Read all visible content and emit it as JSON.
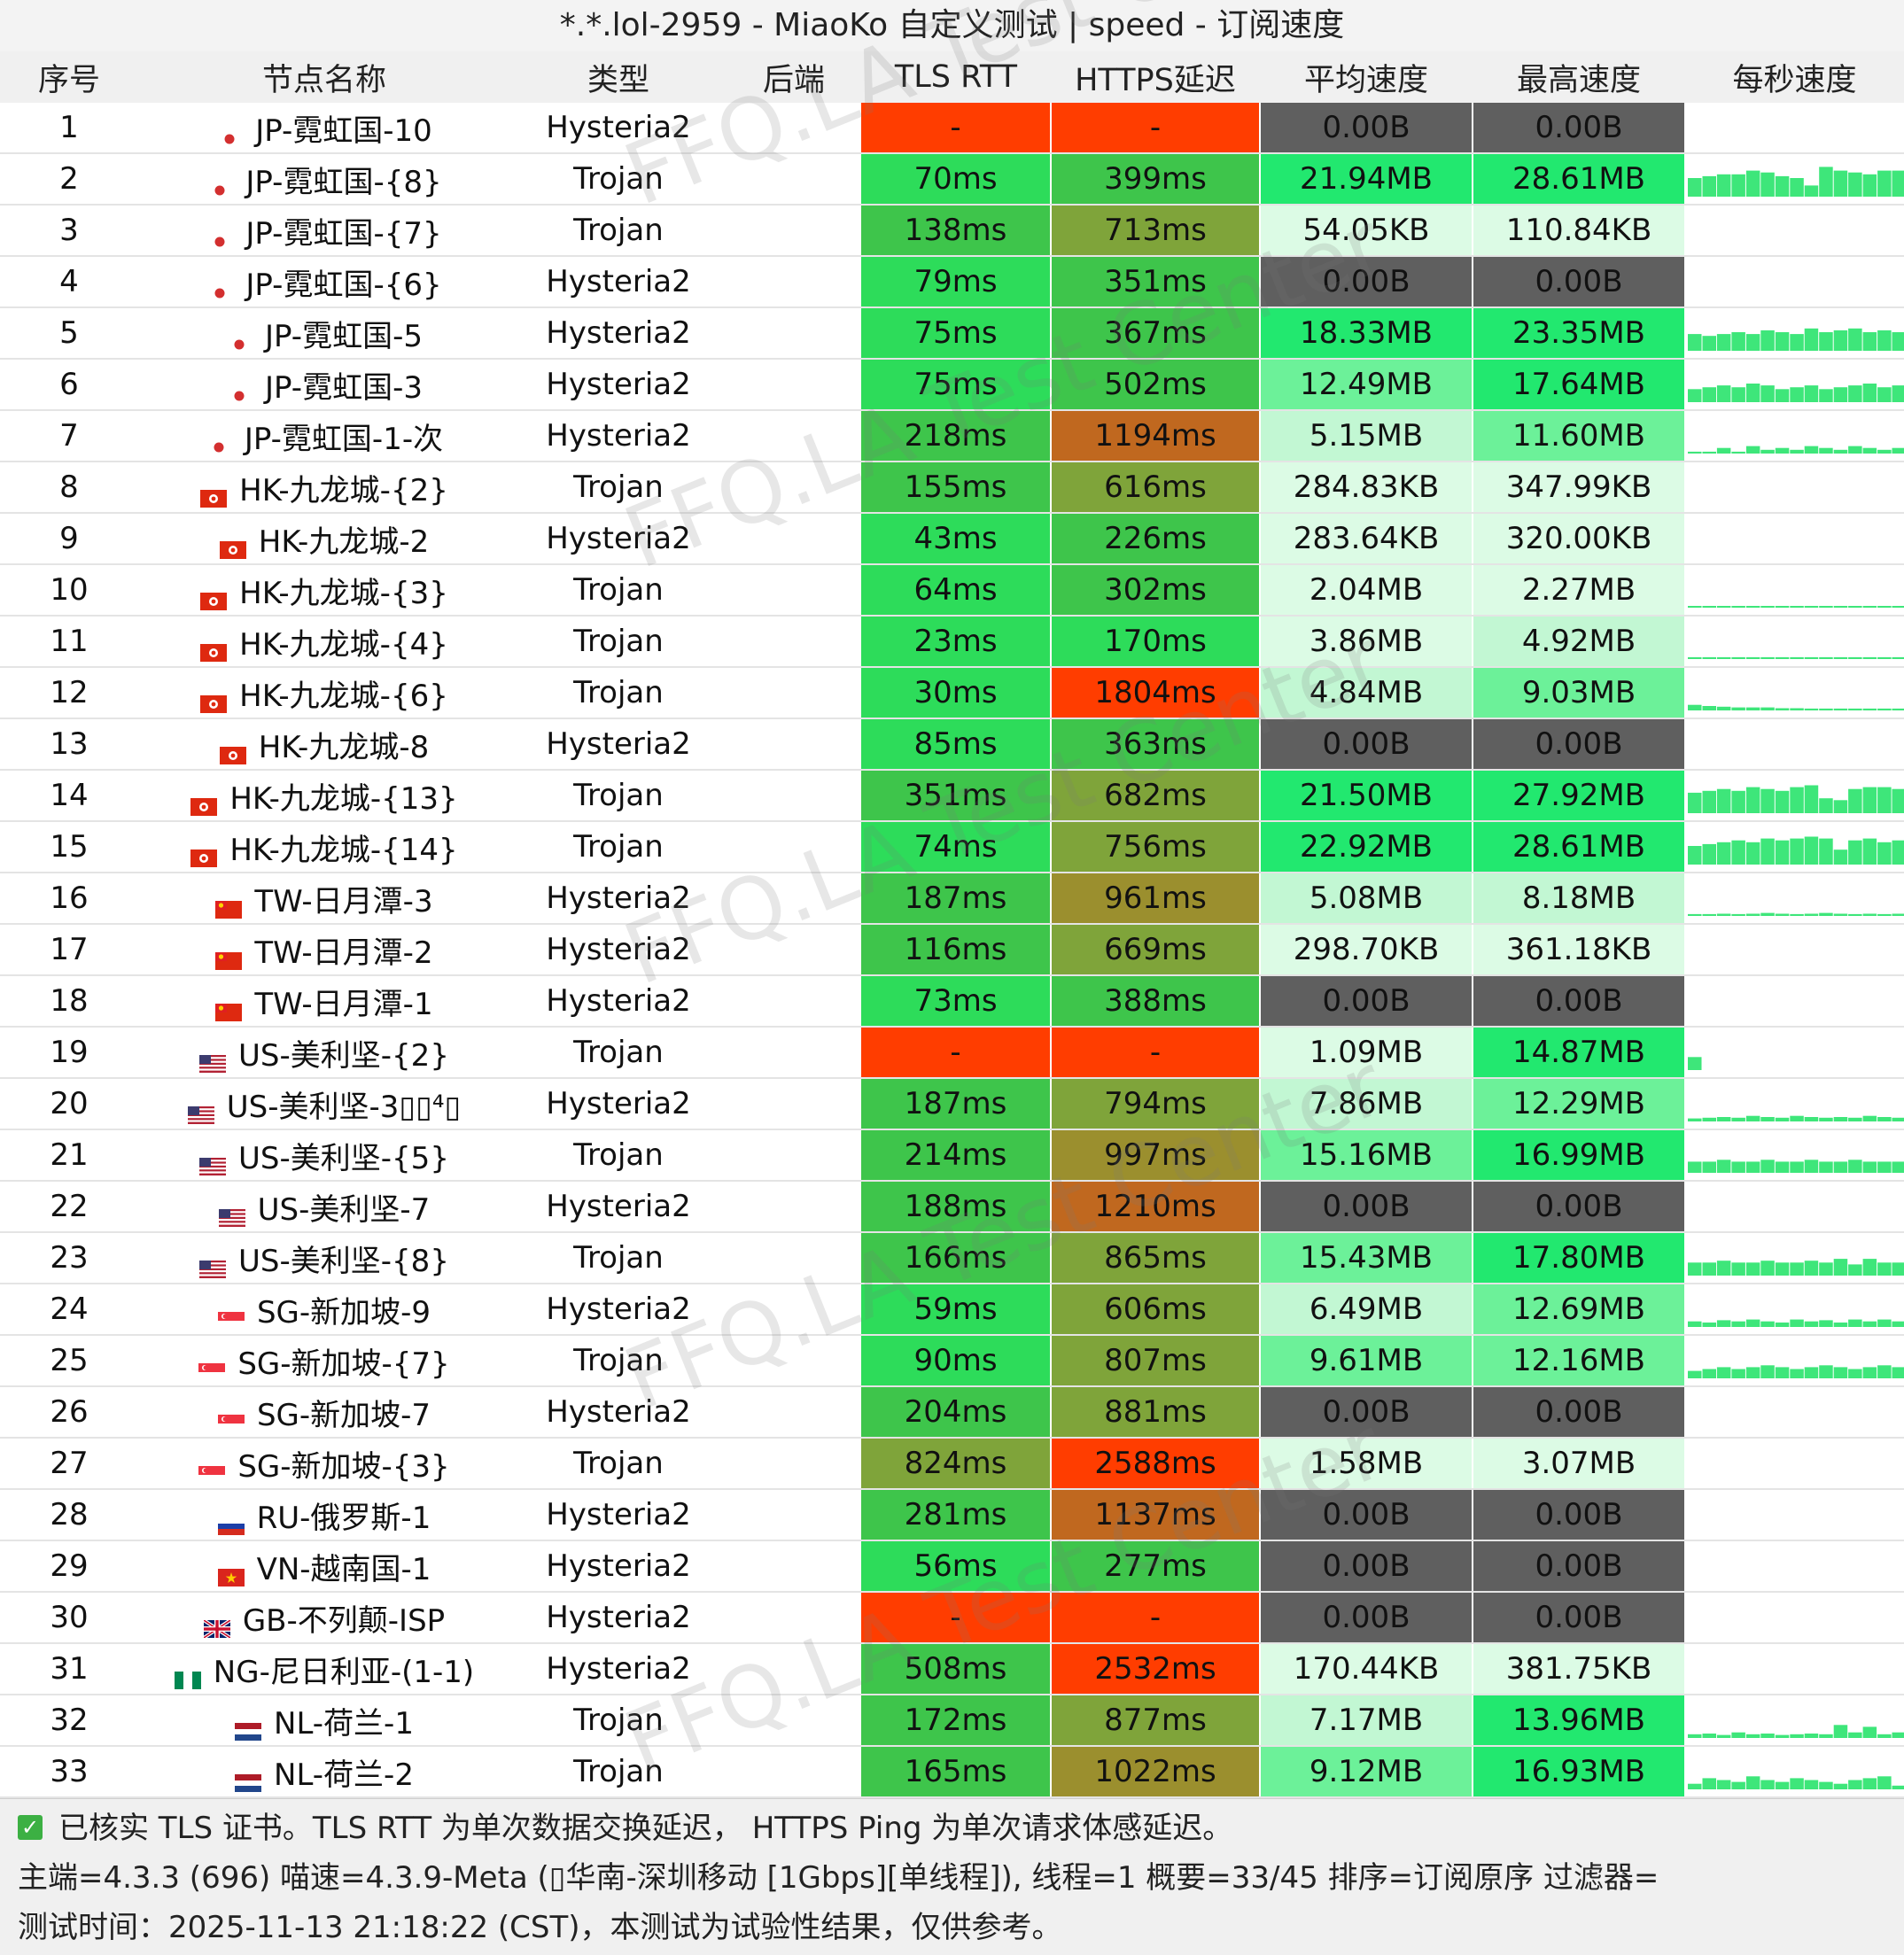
{
  "window": {
    "title": "*.*.lol-2959 - MiaoKo 自定义测试 | speed - 订阅速度"
  },
  "columns": [
    "序号",
    "节点名称",
    "类型",
    "后端",
    "TLS RTT",
    "HTTPS延迟",
    "平均速度",
    "最高速度",
    "每秒速度"
  ],
  "colors": {
    "fail_red": "#ff3d00",
    "no_speed_gray": "#5f5f5f",
    "good_green": "#2ddc5a",
    "ok_green": "#3ec54b",
    "olive": "#7fa43a",
    "olive_dark": "#9b8f2e",
    "orange": "#c0681f",
    "speed_high": "#22e86f",
    "speed_mid": "#6cf199",
    "speed_low": "#c2f7d3",
    "speed_min": "#dcfbe5",
    "graph_green": "#3ee67a"
  },
  "rows": [
    {
      "id": "1",
      "flag": "jp",
      "name": "JP-霓虹国-10",
      "type": "Hysteria2",
      "backend": "",
      "tls": "-",
      "https": "-",
      "avg": "0.00B",
      "max": "0.00B",
      "tls_c": "fail_red",
      "https_c": "fail_red",
      "avg_c": "no_speed_gray",
      "max_c": "no_speed_gray",
      "graph": []
    },
    {
      "id": "2",
      "flag": "jp",
      "name": "JP-霓虹国-{8}",
      "type": "Trojan",
      "backend": "",
      "tls": "70ms",
      "https": "399ms",
      "avg": "21.94MB",
      "max": "28.61MB",
      "tls_c": "good_green",
      "https_c": "ok_green",
      "avg_c": "speed_high",
      "max_c": "speed_high",
      "graph": [
        0.5,
        0.55,
        0.6,
        0.6,
        0.7,
        0.65,
        0.55,
        0.5,
        0.3,
        0.8,
        0.7,
        0.65,
        0.6,
        0.7,
        0.7
      ]
    },
    {
      "id": "3",
      "flag": "jp",
      "name": "JP-霓虹国-{7}",
      "type": "Trojan",
      "backend": "",
      "tls": "138ms",
      "https": "713ms",
      "avg": "54.05KB",
      "max": "110.84KB",
      "tls_c": "ok_green",
      "https_c": "olive",
      "avg_c": "speed_min",
      "max_c": "speed_min",
      "graph": []
    },
    {
      "id": "4",
      "flag": "jp",
      "name": "JP-霓虹国-{6}",
      "type": "Hysteria2",
      "backend": "",
      "tls": "79ms",
      "https": "351ms",
      "avg": "0.00B",
      "max": "0.00B",
      "tls_c": "good_green",
      "https_c": "ok_green",
      "avg_c": "no_speed_gray",
      "max_c": "no_speed_gray",
      "graph": []
    },
    {
      "id": "5",
      "flag": "jp",
      "name": "JP-霓虹国-5",
      "type": "Hysteria2",
      "backend": "",
      "tls": "75ms",
      "https": "367ms",
      "avg": "18.33MB",
      "max": "23.35MB",
      "tls_c": "good_green",
      "https_c": "ok_green",
      "avg_c": "speed_high",
      "max_c": "speed_high",
      "graph": [
        0.45,
        0.4,
        0.45,
        0.5,
        0.45,
        0.55,
        0.5,
        0.45,
        0.6,
        0.5,
        0.55,
        0.6,
        0.5,
        0.55,
        0.5
      ]
    },
    {
      "id": "6",
      "flag": "jp",
      "name": "JP-霓虹国-3",
      "type": "Hysteria2",
      "backend": "",
      "tls": "75ms",
      "https": "502ms",
      "avg": "12.49MB",
      "max": "17.64MB",
      "tls_c": "good_green",
      "https_c": "ok_green",
      "avg_c": "speed_mid",
      "max_c": "speed_high",
      "graph": [
        0.35,
        0.4,
        0.45,
        0.4,
        0.5,
        0.45,
        0.35,
        0.4,
        0.45,
        0.35,
        0.4,
        0.45,
        0.5,
        0.4,
        0.45
      ]
    },
    {
      "id": "7",
      "flag": "jp",
      "name": "JP-霓虹国-1-次",
      "type": "Hysteria2",
      "backend": "",
      "tls": "218ms",
      "https": "1194ms",
      "avg": "5.15MB",
      "max": "11.60MB",
      "tls_c": "ok_green",
      "https_c": "orange",
      "avg_c": "speed_low",
      "max_c": "speed_mid",
      "graph": [
        0.05,
        0.05,
        0.15,
        0.05,
        0.2,
        0.1,
        0.15,
        0.1,
        0.2,
        0.15,
        0.1,
        0.2,
        0.15,
        0.1,
        0.15
      ]
    },
    {
      "id": "8",
      "flag": "hk",
      "name": "HK-九龙城-{2}",
      "type": "Trojan",
      "backend": "",
      "tls": "155ms",
      "https": "616ms",
      "avg": "284.83KB",
      "max": "347.99KB",
      "tls_c": "ok_green",
      "https_c": "olive",
      "avg_c": "speed_min",
      "max_c": "speed_min",
      "graph": []
    },
    {
      "id": "9",
      "flag": "hk",
      "name": "HK-九龙城-2",
      "type": "Hysteria2",
      "backend": "",
      "tls": "43ms",
      "https": "226ms",
      "avg": "283.64KB",
      "max": "320.00KB",
      "tls_c": "good_green",
      "https_c": "ok_green",
      "avg_c": "speed_min",
      "max_c": "speed_min",
      "graph": []
    },
    {
      "id": "10",
      "flag": "hk",
      "name": "HK-九龙城-{3}",
      "type": "Trojan",
      "backend": "",
      "tls": "64ms",
      "https": "302ms",
      "avg": "2.04MB",
      "max": "2.27MB",
      "tls_c": "good_green",
      "https_c": "ok_green",
      "avg_c": "speed_min",
      "max_c": "speed_min",
      "graph": [
        0.03,
        0.03,
        0.03,
        0.03,
        0.03,
        0.03,
        0.03,
        0.03,
        0.03,
        0.03,
        0.03,
        0.03,
        0.03,
        0.03,
        0.03
      ]
    },
    {
      "id": "11",
      "flag": "hk",
      "name": "HK-九龙城-{4}",
      "type": "Trojan",
      "backend": "",
      "tls": "23ms",
      "https": "170ms",
      "avg": "3.86MB",
      "max": "4.92MB",
      "tls_c": "good_green",
      "https_c": "good_green",
      "avg_c": "speed_min",
      "max_c": "speed_low",
      "graph": [
        0.05,
        0.05,
        0.05,
        0.05,
        0.05,
        0.05,
        0.05,
        0.05,
        0.05,
        0.05,
        0.05,
        0.05,
        0.05,
        0.05,
        0.05
      ]
    },
    {
      "id": "12",
      "flag": "hk",
      "name": "HK-九龙城-{6}",
      "type": "Trojan",
      "backend": "",
      "tls": "30ms",
      "https": "1804ms",
      "avg": "4.84MB",
      "max": "9.03MB",
      "tls_c": "good_green",
      "https_c": "fail_red",
      "avg_c": "speed_low",
      "max_c": "speed_mid",
      "graph": [
        0.15,
        0.12,
        0.1,
        0.08,
        0.08,
        0.08,
        0.06,
        0.06,
        0.05,
        0.05,
        0.05,
        0.05,
        0.05,
        0.05,
        0.05
      ]
    },
    {
      "id": "13",
      "flag": "hk",
      "name": "HK-九龙城-8",
      "type": "Hysteria2",
      "backend": "",
      "tls": "85ms",
      "https": "363ms",
      "avg": "0.00B",
      "max": "0.00B",
      "tls_c": "good_green",
      "https_c": "ok_green",
      "avg_c": "no_speed_gray",
      "max_c": "no_speed_gray",
      "graph": []
    },
    {
      "id": "14",
      "flag": "hk",
      "name": "HK-九龙城-{13}",
      "type": "Trojan",
      "backend": "",
      "tls": "351ms",
      "https": "682ms",
      "avg": "21.50MB",
      "max": "27.92MB",
      "tls_c": "ok_green",
      "https_c": "olive",
      "avg_c": "speed_high",
      "max_c": "speed_high",
      "graph": [
        0.55,
        0.6,
        0.65,
        0.6,
        0.7,
        0.65,
        0.6,
        0.7,
        0.75,
        0.4,
        0.35,
        0.65,
        0.7,
        0.7,
        0.65
      ]
    },
    {
      "id": "15",
      "flag": "hk",
      "name": "HK-九龙城-{14}",
      "type": "Trojan",
      "backend": "",
      "tls": "74ms",
      "https": "756ms",
      "avg": "22.92MB",
      "max": "28.61MB",
      "tls_c": "good_green",
      "https_c": "olive",
      "avg_c": "speed_high",
      "max_c": "speed_high",
      "graph": [
        0.5,
        0.55,
        0.6,
        0.65,
        0.6,
        0.7,
        0.65,
        0.7,
        0.75,
        0.7,
        0.4,
        0.65,
        0.7,
        0.6,
        0.65
      ]
    },
    {
      "id": "16",
      "flag": "tw",
      "name": "TW-日月潭-3",
      "type": "Hysteria2",
      "backend": "",
      "tls": "187ms",
      "https": "961ms",
      "avg": "5.08MB",
      "max": "8.18MB",
      "tls_c": "ok_green",
      "https_c": "olive_dark",
      "avg_c": "speed_low",
      "max_c": "speed_low",
      "graph": [
        0.05,
        0.05,
        0.06,
        0.05,
        0.06,
        0.08,
        0.06,
        0.05,
        0.06,
        0.08,
        0.06,
        0.05,
        0.06,
        0.05,
        0.06
      ]
    },
    {
      "id": "17",
      "flag": "tw",
      "name": "TW-日月潭-2",
      "type": "Hysteria2",
      "backend": "",
      "tls": "116ms",
      "https": "669ms",
      "avg": "298.70KB",
      "max": "361.18KB",
      "tls_c": "ok_green",
      "https_c": "olive",
      "avg_c": "speed_min",
      "max_c": "speed_min",
      "graph": []
    },
    {
      "id": "18",
      "flag": "tw",
      "name": "TW-日月潭-1",
      "type": "Hysteria2",
      "backend": "",
      "tls": "73ms",
      "https": "388ms",
      "avg": "0.00B",
      "max": "0.00B",
      "tls_c": "good_green",
      "https_c": "ok_green",
      "avg_c": "no_speed_gray",
      "max_c": "no_speed_gray",
      "graph": []
    },
    {
      "id": "19",
      "flag": "us",
      "name": "US-美利坚-{2}",
      "type": "Trojan",
      "backend": "",
      "tls": "-",
      "https": "-",
      "avg": "1.09MB",
      "max": "14.87MB",
      "tls_c": "fail_red",
      "https_c": "fail_red",
      "avg_c": "speed_min",
      "max_c": "speed_high",
      "graph": [
        0.35,
        0,
        0,
        0,
        0,
        0,
        0,
        0,
        0,
        0,
        0,
        0,
        0,
        0,
        0
      ]
    },
    {
      "id": "20",
      "flag": "us",
      "name": "US-美利坚-3▯▯⁴▯",
      "type": "Hysteria2",
      "backend": "",
      "tls": "187ms",
      "https": "794ms",
      "avg": "7.86MB",
      "max": "12.29MB",
      "tls_c": "ok_green",
      "https_c": "olive",
      "avg_c": "speed_low",
      "max_c": "speed_mid",
      "graph": [
        0.08,
        0.1,
        0.12,
        0.1,
        0.15,
        0.12,
        0.1,
        0.15,
        0.12,
        0.1,
        0.12,
        0.1,
        0.15,
        0.12,
        0.1
      ]
    },
    {
      "id": "21",
      "flag": "us",
      "name": "US-美利坚-{5}",
      "type": "Trojan",
      "backend": "",
      "tls": "214ms",
      "https": "997ms",
      "avg": "15.16MB",
      "max": "16.99MB",
      "tls_c": "ok_green",
      "https_c": "olive_dark",
      "avg_c": "speed_mid",
      "max_c": "speed_high",
      "graph": [
        0.3,
        0.3,
        0.35,
        0.3,
        0.3,
        0.35,
        0.3,
        0.3,
        0.35,
        0.3,
        0.3,
        0.35,
        0.3,
        0.3,
        0.3
      ]
    },
    {
      "id": "22",
      "flag": "us",
      "name": "US-美利坚-7",
      "type": "Hysteria2",
      "backend": "",
      "tls": "188ms",
      "https": "1210ms",
      "avg": "0.00B",
      "max": "0.00B",
      "tls_c": "ok_green",
      "https_c": "orange",
      "avg_c": "no_speed_gray",
      "max_c": "no_speed_gray",
      "graph": []
    },
    {
      "id": "23",
      "flag": "us",
      "name": "US-美利坚-{8}",
      "type": "Trojan",
      "backend": "",
      "tls": "166ms",
      "https": "865ms",
      "avg": "15.43MB",
      "max": "17.80MB",
      "tls_c": "ok_green",
      "https_c": "olive",
      "avg_c": "speed_mid",
      "max_c": "speed_high",
      "graph": [
        0.35,
        0.35,
        0.4,
        0.35,
        0.35,
        0.4,
        0.35,
        0.35,
        0.4,
        0.35,
        0.45,
        0.3,
        0.45,
        0.35,
        0.35
      ]
    },
    {
      "id": "24",
      "flag": "sg",
      "name": "SG-新加坡-9",
      "type": "Hysteria2",
      "backend": "",
      "tls": "59ms",
      "https": "606ms",
      "avg": "6.49MB",
      "max": "12.69MB",
      "tls_c": "good_green",
      "https_c": "olive",
      "avg_c": "speed_low",
      "max_c": "speed_mid",
      "graph": [
        0.15,
        0.12,
        0.18,
        0.15,
        0.2,
        0.15,
        0.12,
        0.2,
        0.15,
        0.18,
        0.12,
        0.2,
        0.15,
        0.2,
        0.15
      ]
    },
    {
      "id": "25",
      "flag": "sg",
      "name": "SG-新加坡-{7}",
      "type": "Trojan",
      "backend": "",
      "tls": "90ms",
      "https": "807ms",
      "avg": "9.61MB",
      "max": "12.16MB",
      "tls_c": "good_green",
      "https_c": "olive",
      "avg_c": "speed_mid",
      "max_c": "speed_mid",
      "graph": [
        0.2,
        0.25,
        0.3,
        0.25,
        0.3,
        0.35,
        0.3,
        0.25,
        0.3,
        0.35,
        0.3,
        0.25,
        0.3,
        0.35,
        0.3
      ]
    },
    {
      "id": "26",
      "flag": "sg",
      "name": "SG-新加坡-7",
      "type": "Hysteria2",
      "backend": "",
      "tls": "204ms",
      "https": "881ms",
      "avg": "0.00B",
      "max": "0.00B",
      "tls_c": "ok_green",
      "https_c": "olive",
      "avg_c": "no_speed_gray",
      "max_c": "no_speed_gray",
      "graph": []
    },
    {
      "id": "27",
      "flag": "sg",
      "name": "SG-新加坡-{3}",
      "type": "Trojan",
      "backend": "",
      "tls": "824ms",
      "https": "2588ms",
      "avg": "1.58MB",
      "max": "3.07MB",
      "tls_c": "olive",
      "https_c": "fail_red",
      "avg_c": "speed_min",
      "max_c": "speed_min",
      "graph": []
    },
    {
      "id": "28",
      "flag": "ru",
      "name": "RU-俄罗斯-1",
      "type": "Hysteria2",
      "backend": "",
      "tls": "281ms",
      "https": "1137ms",
      "avg": "0.00B",
      "max": "0.00B",
      "tls_c": "ok_green",
      "https_c": "orange",
      "avg_c": "no_speed_gray",
      "max_c": "no_speed_gray",
      "graph": []
    },
    {
      "id": "29",
      "flag": "vn",
      "name": "VN-越南国-1",
      "type": "Hysteria2",
      "backend": "",
      "tls": "56ms",
      "https": "277ms",
      "avg": "0.00B",
      "max": "0.00B",
      "tls_c": "good_green",
      "https_c": "ok_green",
      "avg_c": "no_speed_gray",
      "max_c": "no_speed_gray",
      "graph": []
    },
    {
      "id": "30",
      "flag": "gb",
      "name": "GB-不列颠-ISP",
      "type": "Hysteria2",
      "backend": "",
      "tls": "-",
      "https": "-",
      "avg": "0.00B",
      "max": "0.00B",
      "tls_c": "fail_red",
      "https_c": "fail_red",
      "avg_c": "no_speed_gray",
      "max_c": "no_speed_gray",
      "graph": []
    },
    {
      "id": "31",
      "flag": "ng",
      "name": "NG-尼日利亚-(1-1)",
      "type": "Hysteria2",
      "backend": "",
      "tls": "508ms",
      "https": "2532ms",
      "avg": "170.44KB",
      "max": "381.75KB",
      "tls_c": "ok_green",
      "https_c": "fail_red",
      "avg_c": "speed_min",
      "max_c": "speed_min",
      "graph": []
    },
    {
      "id": "32",
      "flag": "nl",
      "name": "NL-荷兰-1",
      "type": "Trojan",
      "backend": "",
      "tls": "172ms",
      "https": "877ms",
      "avg": "7.17MB",
      "max": "13.96MB",
      "tls_c": "ok_green",
      "https_c": "olive",
      "avg_c": "speed_low",
      "max_c": "speed_high",
      "graph": [
        0.1,
        0.12,
        0.08,
        0.15,
        0.1,
        0.12,
        0.08,
        0.1,
        0.12,
        0.1,
        0.35,
        0.15,
        0.3,
        0.1,
        0.15
      ]
    },
    {
      "id": "33",
      "flag": "nl",
      "name": "NL-荷兰-2",
      "type": "Trojan",
      "backend": "",
      "tls": "165ms",
      "https": "1022ms",
      "avg": "9.12MB",
      "max": "16.93MB",
      "tls_c": "ok_green",
      "https_c": "olive_dark",
      "avg_c": "speed_mid",
      "max_c": "speed_high",
      "graph": [
        0.15,
        0.3,
        0.25,
        0.2,
        0.35,
        0.25,
        0.2,
        0.3,
        0.25,
        0.2,
        0.15,
        0.25,
        0.3,
        0.35,
        0.1
      ]
    }
  ],
  "footer": {
    "line1": "已核实 TLS 证书。TLS RTT 为单次数据交换延迟， HTTPS Ping 为单次请求体感延迟。",
    "line2": "主端=4.3.3 (696) 喵速=4.3.9-Meta (▯华南-深圳移动 [1Gbps][单线程]), 线程=1 概要=33/45 排序=订阅原序 过滤器=",
    "line3": "测试时间：2025-11-13 21:18:22 (CST)，本测试为试验性结果，仅供参考。"
  },
  "watermark": "FFQ.LA Test Center"
}
